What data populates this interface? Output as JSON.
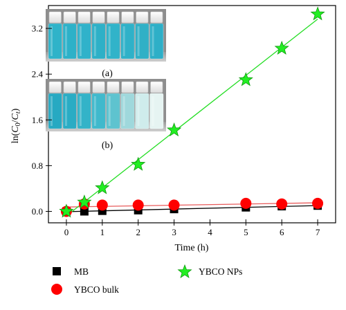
{
  "chart_data": {
    "type": "line",
    "xlabel": "Time (h)",
    "ylabel_main": "ln(",
    "ylabel_c0": "C",
    "ylabel_c0_sub": "0",
    "ylabel_sep": "/",
    "ylabel_ct": "C",
    "ylabel_ct_sub": "t",
    "ylabel_close": ")",
    "xlim": [
      -0.5,
      7.5
    ],
    "ylim": [
      -0.2,
      3.6
    ],
    "x_ticks": [
      0,
      1,
      2,
      3,
      4,
      5,
      6,
      7
    ],
    "x_tick_labels": [
      "0",
      "1",
      "2",
      "3",
      "4",
      "5",
      "6",
      "7"
    ],
    "y_ticks": [
      0.0,
      0.8,
      1.6,
      2.4,
      3.2
    ],
    "y_tick_labels": [
      "0.0",
      "0.8",
      "1.6",
      "2.4",
      "3.2"
    ],
    "grid": false,
    "legend_position": "bottom",
    "series": [
      {
        "name": "MB",
        "marker": "square",
        "color": "#000000",
        "line_color": "#000000",
        "x": [
          0,
          0.5,
          1,
          2,
          3,
          5,
          6,
          7
        ],
        "y": [
          0.0,
          0.0,
          0.01,
          0.02,
          0.04,
          0.07,
          0.09,
          0.1
        ]
      },
      {
        "name": "YBCO bulk",
        "marker": "circle",
        "color": "#ff0000",
        "line_color": "#e85a5a",
        "x": [
          0,
          0.5,
          1,
          2,
          3,
          5,
          6,
          7
        ],
        "y": [
          0.0,
          0.13,
          0.11,
          0.11,
          0.11,
          0.14,
          0.13,
          0.14
        ]
      },
      {
        "name": "YBCO NPs",
        "marker": "star",
        "color": "#22ee22",
        "line_color": "#22dd22",
        "x": [
          0,
          0.5,
          1,
          2,
          3,
          5,
          6,
          7
        ],
        "y": [
          0.0,
          0.16,
          0.41,
          0.82,
          1.42,
          2.3,
          2.85,
          3.45
        ]
      }
    ],
    "annotations": [
      {
        "id": "a",
        "text": "(a)"
      },
      {
        "id": "b",
        "text": "(b)"
      }
    ]
  },
  "inset": {
    "vials_a": [
      "#2fb3c9",
      "#2db1c8",
      "#30b2ca",
      "#2eb0c7",
      "#31b3c9",
      "#2fb1c8",
      "#30b0c6",
      "#2eafc7"
    ],
    "vials_b": [
      "#27a9c2",
      "#2aacc4",
      "#33b3c8",
      "#40b9cc",
      "#5ec3cf",
      "#9fd8dc",
      "#cfecec",
      "#e6f4f2"
    ]
  }
}
